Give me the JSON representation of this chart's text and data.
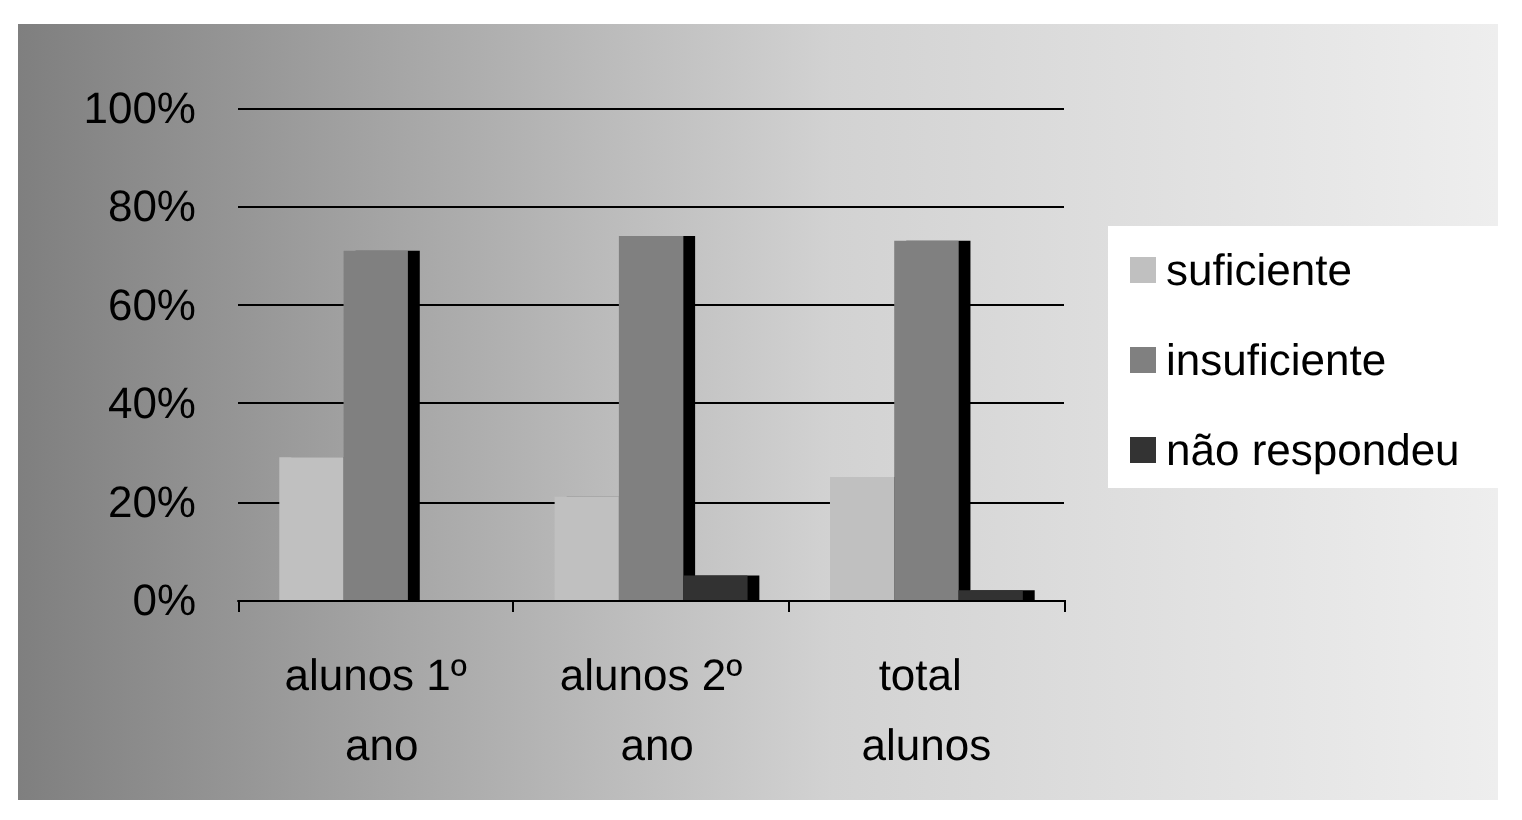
{
  "chart_data": {
    "type": "bar",
    "categories": [
      "alunos 1º ano",
      "alunos 2º ano",
      "total alunos"
    ],
    "series": [
      {
        "name": "suficiente",
        "color": "#c0c0c0",
        "values": [
          29,
          21,
          25
        ]
      },
      {
        "name": "insuficiente",
        "color": "#808080",
        "values": [
          71,
          74,
          73
        ]
      },
      {
        "name": "não respondeu",
        "color": "#333333",
        "values": [
          0,
          5,
          2
        ]
      }
    ],
    "ylim": [
      0,
      100
    ],
    "yticks": [
      {
        "value": 0,
        "label": "0%"
      },
      {
        "value": 20,
        "label": "20%"
      },
      {
        "value": 40,
        "label": "40%"
      },
      {
        "value": 60,
        "label": "60%"
      },
      {
        "value": 80,
        "label": "80%"
      },
      {
        "value": 100,
        "label": "100%"
      }
    ],
    "grid": "y",
    "legend": "right"
  }
}
